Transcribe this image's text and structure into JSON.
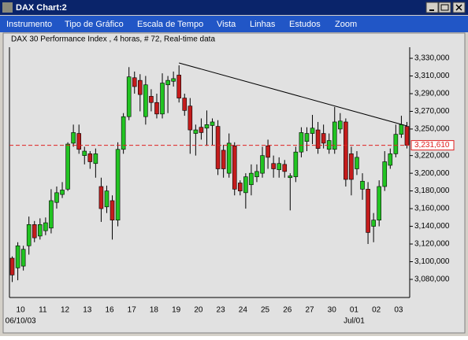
{
  "window": {
    "title": "DAX Chart:2"
  },
  "menu": [
    "Instrumento",
    "Tipo de Gráfico",
    "Escala de Tempo",
    "Vista",
    "Linhas",
    "Estudos",
    "Zoom"
  ],
  "chart_data": {
    "type": "candlestick",
    "title": "DAX 30 Performance Index , 4 horas, # 72, Real-time data",
    "categories": [
      null,
      "10",
      null,
      null,
      null,
      "11",
      null,
      null,
      null,
      "12",
      null,
      null,
      null,
      "13",
      null,
      null,
      null,
      "16",
      null,
      null,
      null,
      "17",
      null,
      null,
      null,
      "18",
      null,
      null,
      null,
      "19",
      null,
      null,
      null,
      "20",
      null,
      null,
      null,
      "23",
      null,
      null,
      null,
      "24",
      null,
      null,
      null,
      "25",
      null,
      null,
      null,
      "26",
      null,
      null,
      null,
      "27",
      null,
      null,
      null,
      "30",
      null,
      null,
      null,
      "01",
      null,
      null,
      null,
      "02",
      null,
      null,
      null,
      "03",
      null,
      null
    ],
    "sublabels": [
      null,
      "06/10/03",
      null,
      null,
      null,
      null,
      null,
      null,
      null,
      null,
      null,
      null,
      null,
      null,
      null,
      null,
      null,
      null,
      null,
      null,
      null,
      null,
      null,
      null,
      null,
      null,
      null,
      null,
      null,
      null,
      null,
      null,
      null,
      null,
      null,
      null,
      null,
      null,
      null,
      null,
      null,
      null,
      null,
      null,
      null,
      null,
      null,
      null,
      null,
      null,
      null,
      null,
      null,
      null,
      null,
      null,
      null,
      null,
      null,
      null,
      null,
      "Jul/01",
      null,
      null,
      null,
      null,
      null,
      null,
      null,
      null,
      null,
      null
    ],
    "open": [
      3104000,
      3093000,
      3095000,
      3118000,
      3142000,
      3129000,
      3135000,
      3138000,
      3167000,
      3176000,
      3182000,
      3234000,
      3245000,
      3220000,
      3222000,
      3211000,
      3185000,
      3162000,
      3169000,
      3147000,
      3227000,
      3264000,
      3308000,
      3305000,
      3264000,
      3287000,
      3280000,
      3267000,
      3300000,
      3304000,
      3311000,
      3285000,
      3276000,
      3245000,
      3252000,
      3251000,
      3254000,
      3253000,
      3226000,
      3200000,
      3231000,
      3189000,
      3178000,
      3187000,
      3196000,
      3200000,
      3231000,
      3211000,
      3204000,
      3210000,
      3195000,
      3196000,
      3224000,
      3236000,
      3245000,
      3249000,
      3245000,
      3227000,
      3227000,
      3250000,
      3258000,
      3222000,
      3205000,
      3182000,
      3182000,
      3140000,
      3147000,
      3185000,
      3209000,
      3222000,
      3244000,
      3253000
    ],
    "high": [
      3106000,
      3122000,
      3118000,
      3151000,
      3146000,
      3149000,
      3150000,
      3182000,
      3185000,
      3190000,
      3235000,
      3255000,
      3255000,
      3230000,
      3225000,
      3228000,
      3195000,
      3186000,
      3175000,
      3235000,
      3268000,
      3320000,
      3315000,
      3312000,
      3310000,
      3295000,
      3290000,
      3313000,
      3310000,
      3315000,
      3322000,
      3290000,
      3285000,
      3255000,
      3262000,
      3271000,
      3262000,
      3260000,
      3232000,
      3245000,
      3235000,
      3192000,
      3200000,
      3210000,
      3210000,
      3230000,
      3238000,
      3220000,
      3218000,
      3215000,
      3200000,
      3230000,
      3252000,
      3252000,
      3266000,
      3258000,
      3255000,
      3245000,
      3275000,
      3268000,
      3262000,
      3230000,
      3225000,
      3200000,
      3190000,
      3155000,
      3192000,
      3225000,
      3228000,
      3255000,
      3265000,
      3258000
    ],
    "low": [
      3077000,
      3079000,
      3090000,
      3108000,
      3122000,
      3125000,
      3130000,
      3132000,
      3160000,
      3172000,
      3180000,
      3230000,
      3222000,
      3210000,
      3205000,
      3195000,
      3145000,
      3155000,
      3125000,
      3140000,
      3222000,
      3260000,
      3290000,
      3270000,
      3255000,
      3270000,
      3262000,
      3262000,
      3268000,
      3298000,
      3280000,
      3265000,
      3222000,
      3220000,
      3238000,
      3231000,
      3232000,
      3198000,
      3195000,
      3195000,
      3175000,
      3175000,
      3160000,
      3175000,
      3190000,
      3195000,
      3205000,
      3195000,
      3195000,
      3195000,
      3158000,
      3190000,
      3218000,
      3225000,
      3233000,
      3222000,
      3228000,
      3222000,
      3222000,
      3245000,
      3185000,
      3175000,
      3198000,
      3170000,
      3120000,
      3122000,
      3140000,
      3180000,
      3205000,
      3218000,
      3240000,
      3228000
    ],
    "close": [
      3085000,
      3118000,
      3114000,
      3142000,
      3127000,
      3142000,
      3144000,
      3169000,
      3178000,
      3181000,
      3233000,
      3246000,
      3227000,
      3225000,
      3213000,
      3222000,
      3160000,
      3180000,
      3147000,
      3227000,
      3264000,
      3309000,
      3298000,
      3289000,
      3300000,
      3280000,
      3267000,
      3302000,
      3305000,
      3307000,
      3285000,
      3271000,
      3249000,
      3249000,
      3246000,
      3255000,
      3258000,
      3205000,
      3205000,
      3234000,
      3182000,
      3180000,
      3196000,
      3200000,
      3202000,
      3220000,
      3218000,
      3205000,
      3211000,
      3202000,
      3197000,
      3224000,
      3246000,
      3245000,
      3251000,
      3228000,
      3234000,
      3237000,
      3258000,
      3259000,
      3193000,
      3193000,
      3218000,
      3191000,
      3133000,
      3147000,
      3185000,
      3213000,
      3222000,
      3244000,
      3255000,
      3231610
    ],
    "up_color": "#22c422",
    "down_color": "#c41c1c",
    "ylim": [
      3059500,
      3342500
    ],
    "yticks": [
      {
        "value": 3330000,
        "label": "3,330,000"
      },
      {
        "value": 3310000,
        "label": "3,310,000"
      },
      {
        "value": 3290000,
        "label": "3,290,000"
      },
      {
        "value": 3270000,
        "label": "3,270,000"
      },
      {
        "value": 3250000,
        "label": "3,250,000"
      },
      {
        "value": 3220000,
        "label": "3,220,000"
      },
      {
        "value": 3200000,
        "label": "3,200,000"
      },
      {
        "value": 3180000,
        "label": "3,180,000"
      },
      {
        "value": 3160000,
        "label": "3,160,000"
      },
      {
        "value": 3140000,
        "label": "3,140,000"
      },
      {
        "value": 3120000,
        "label": "3,120,000"
      },
      {
        "value": 3100000,
        "label": "3,100,000"
      },
      {
        "value": 3080000,
        "label": "3,080,000"
      }
    ],
    "last_price": {
      "value": 3231610,
      "label": "3,231,610",
      "color": "#e02020"
    },
    "trendline": {
      "x": [
        30,
        71
      ],
      "values": [
        3324700,
        3253500
      ],
      "color": "#000000"
    }
  }
}
